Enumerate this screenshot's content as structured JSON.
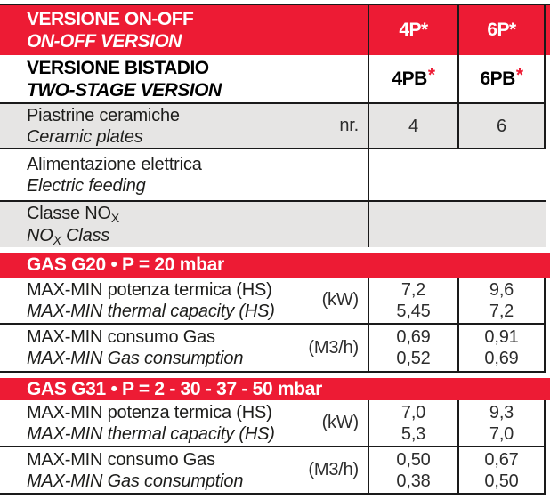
{
  "colors": {
    "accent_red": "#ED1B34",
    "row_gray": "#E6E5E4",
    "border": "#1A1A1A"
  },
  "version_onoff": {
    "it": "VERSIONE ON-OFF",
    "en": "ON-OFF VERSION",
    "model1": "4P*",
    "model2": "6P*"
  },
  "version_twostage": {
    "it": "VERSIONE BISTADIO",
    "en": "TWO-STAGE VERSION",
    "model1": "4PB",
    "model1_star": "*",
    "model2": "6PB",
    "model2_star": "*"
  },
  "ceramic_plates": {
    "it": "Piastrine ceramiche",
    "en": "Ceramic plates",
    "unit": "nr.",
    "val1": "4",
    "val2": "6"
  },
  "electric_feeding": {
    "it": "Alimentazione elettrica",
    "en": "Electric feeding"
  },
  "nox_class": {
    "it_pre": "Classe NO",
    "it_sub": "X",
    "en_pre": "NO",
    "en_sub": "X",
    "en_post": " Class"
  },
  "gas_g20": {
    "title": "GAS G20 • P = 20 mbar",
    "thermal": {
      "it": "MAX-MIN potenza termica (HS)",
      "en": "MAX-MIN thermal capacity (HS)",
      "unit": "(kW)",
      "max1": "7,2",
      "min1": "5,45",
      "max2": "9,6",
      "min2": "7,2"
    },
    "consumption": {
      "it": "MAX-MIN consumo Gas",
      "en": "MAX-MIN Gas consumption",
      "unit": "(M3/h)",
      "max1": "0,69",
      "min1": "0,52",
      "max2": "0,91",
      "min2": "0,69"
    }
  },
  "gas_g31": {
    "title": "GAS G31 • P = 2 - 30 - 37 - 50 mbar",
    "thermal": {
      "it": "MAX-MIN potenza termica (HS)",
      "en": "MAX-MIN thermal capacity (HS)",
      "unit": "(kW)",
      "max1": "7,0",
      "min1": "5,3",
      "max2": "9,3",
      "min2": "7,0"
    },
    "consumption": {
      "it": "MAX-MIN consumo Gas",
      "en": "MAX-MIN Gas consumption",
      "unit": "(M3/h)",
      "max1": "0,50",
      "min1": "0,38",
      "max2": "0,67",
      "min2": "0,50"
    }
  }
}
